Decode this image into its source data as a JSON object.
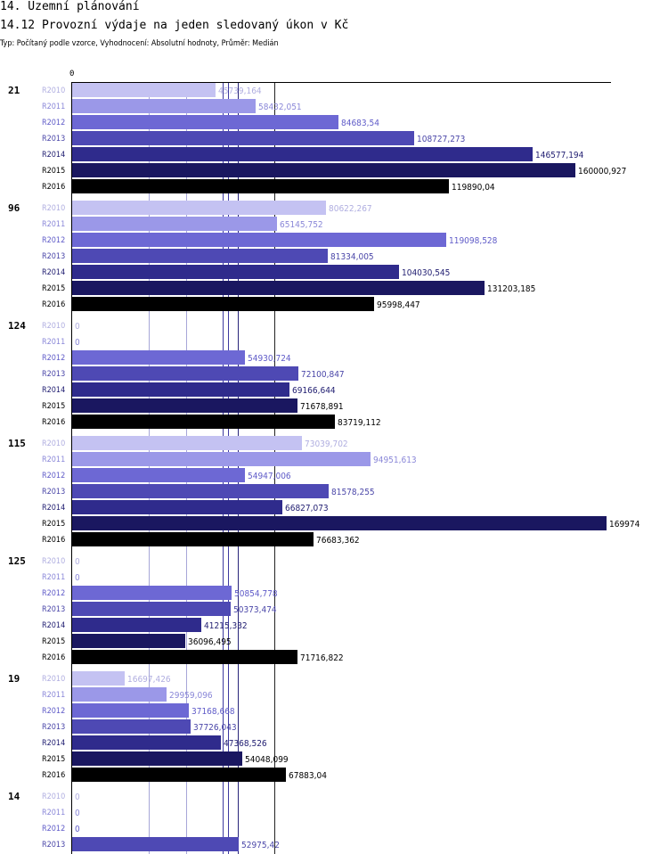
{
  "header": {
    "title": "14. Územní plánování",
    "subtitle": "14.12 Provozní výdaje na jeden sledovaný úkon v Kč",
    "meta": "Typ: Počítaný podle vzorce, Vyhodnocení: Absolutní hodnoty, Průměr: Medián"
  },
  "chart_data": {
    "type": "bar",
    "orientation": "horizontal",
    "x_zero_label": "0",
    "grid": true,
    "series_colors": {
      "R2010": "#c4c2f2",
      "R2011": "#9b98e8",
      "R2012": "#6d68d4",
      "R2013": "#4e49b4",
      "R2014": "#2f2b8c",
      "R2015": "#1a1760",
      "R2016": "#000000"
    },
    "series_label_colors": {
      "R2010": "#b0aee0",
      "R2011": "#8a87d8",
      "R2012": "#5f5bc8",
      "R2013": "#4a46a8",
      "R2014": "#1f1c70",
      "R2015": "#000000",
      "R2016": "#000000"
    },
    "groups": [
      {
        "label": "21",
        "bars": [
          {
            "series": "R2010",
            "value": 45739.164,
            "text": "45739,164"
          },
          {
            "series": "R2011",
            "value": 58432.051,
            "text": "58432,051"
          },
          {
            "series": "R2012",
            "value": 84683.54,
            "text": "84683,54"
          },
          {
            "series": "R2013",
            "value": 108727.273,
            "text": "108727,273"
          },
          {
            "series": "R2014",
            "value": 146577.194,
            "text": "146577,194"
          },
          {
            "series": "R2015",
            "value": 160000.927,
            "text": "160000,927"
          },
          {
            "series": "R2016",
            "value": 119890.04,
            "text": "119890,04"
          }
        ]
      },
      {
        "label": "96",
        "bars": [
          {
            "series": "R2010",
            "value": 80622.267,
            "text": "80622,267"
          },
          {
            "series": "R2011",
            "value": 65145.752,
            "text": "65145,752"
          },
          {
            "series": "R2012",
            "value": 119098.528,
            "text": "119098,528"
          },
          {
            "series": "R2013",
            "value": 81334.005,
            "text": "81334,005"
          },
          {
            "series": "R2014",
            "value": 104030.545,
            "text": "104030,545"
          },
          {
            "series": "R2015",
            "value": 131203.185,
            "text": "131203,185"
          },
          {
            "series": "R2016",
            "value": 95998.447,
            "text": "95998,447"
          }
        ]
      },
      {
        "label": "124",
        "bars": [
          {
            "series": "R2010",
            "value": 0,
            "text": "0"
          },
          {
            "series": "R2011",
            "value": 0,
            "text": "0"
          },
          {
            "series": "R2012",
            "value": 54930.724,
            "text": "54930,724"
          },
          {
            "series": "R2013",
            "value": 72100.847,
            "text": "72100,847"
          },
          {
            "series": "R2014",
            "value": 69166.644,
            "text": "69166,644"
          },
          {
            "series": "R2015",
            "value": 71678.891,
            "text": "71678,891"
          },
          {
            "series": "R2016",
            "value": 83719.112,
            "text": "83719,112"
          }
        ]
      },
      {
        "label": "115",
        "bars": [
          {
            "series": "R2010",
            "value": 73039.702,
            "text": "73039,702"
          },
          {
            "series": "R2011",
            "value": 94951.613,
            "text": "94951,613"
          },
          {
            "series": "R2012",
            "value": 54947.006,
            "text": "54947,006"
          },
          {
            "series": "R2013",
            "value": 81578.255,
            "text": "81578,255"
          },
          {
            "series": "R2014",
            "value": 66827.073,
            "text": "66827,073"
          },
          {
            "series": "R2015",
            "value": 169974,
            "text": "169974"
          },
          {
            "series": "R2016",
            "value": 76683.362,
            "text": "76683,362"
          }
        ]
      },
      {
        "label": "125",
        "bars": [
          {
            "series": "R2010",
            "value": 0,
            "text": "0"
          },
          {
            "series": "R2011",
            "value": 0,
            "text": "0"
          },
          {
            "series": "R2012",
            "value": 50854.778,
            "text": "50854,778"
          },
          {
            "series": "R2013",
            "value": 50373.474,
            "text": "50373,474"
          },
          {
            "series": "R2014",
            "value": 41215.332,
            "text": "41215,332"
          },
          {
            "series": "R2015",
            "value": 36096.495,
            "text": "36096,495"
          },
          {
            "series": "R2016",
            "value": 71716.822,
            "text": "71716,822"
          }
        ]
      },
      {
        "label": "19",
        "bars": [
          {
            "series": "R2010",
            "value": 16697.426,
            "text": "16697,426"
          },
          {
            "series": "R2011",
            "value": 29959.096,
            "text": "29959,096"
          },
          {
            "series": "R2012",
            "value": 37168.668,
            "text": "37168,668"
          },
          {
            "series": "R2013",
            "value": 37726.043,
            "text": "37726,043"
          },
          {
            "series": "R2014",
            "value": 47368.526,
            "text": "47368,526"
          },
          {
            "series": "R2015",
            "value": 54048.099,
            "text": "54048,099"
          },
          {
            "series": "R2016",
            "value": 67883.04,
            "text": "67883,04"
          }
        ]
      },
      {
        "label": "14",
        "bars": [
          {
            "series": "R2010",
            "value": 0,
            "text": "0"
          },
          {
            "series": "R2011",
            "value": 0,
            "text": "0"
          },
          {
            "series": "R2012",
            "value": 0,
            "text": "0"
          },
          {
            "series": "R2013",
            "value": 52975.42,
            "text": "52975,42"
          }
        ]
      }
    ],
    "reference_lines": [
      {
        "value": 24500,
        "color": "#a7a6d8"
      },
      {
        "value": 36300,
        "color": "#a7a6d8"
      },
      {
        "value": 47900,
        "color": "#3e3aa0"
      },
      {
        "value": 49600,
        "color": "#3e3aa0"
      },
      {
        "value": 52600,
        "color": "#28247a"
      },
      {
        "value": 64400,
        "color": "#222222"
      }
    ],
    "xlim": [
      0,
      170000
    ]
  }
}
